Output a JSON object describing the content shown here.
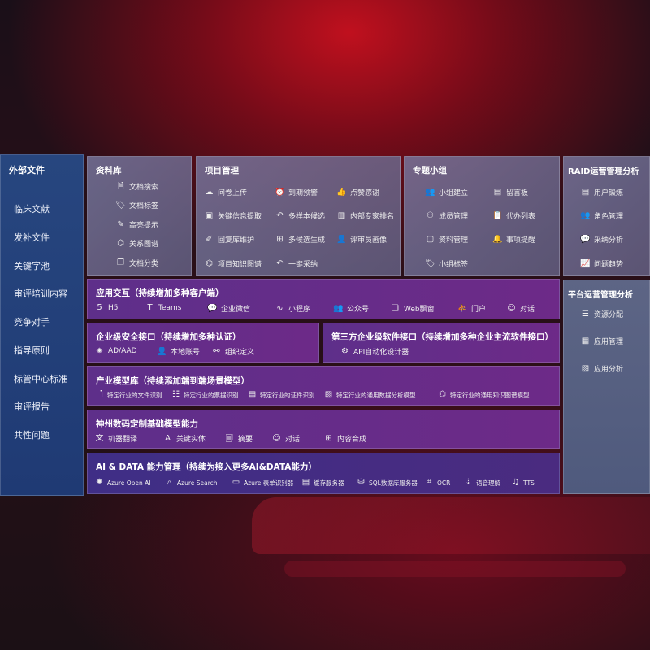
{
  "sidebar": {
    "title": "外部文件",
    "items": [
      "临床文献",
      "发补文件",
      "关键字池",
      "审评培训内容",
      "竞争对手",
      "指导原则",
      "标管中心标准",
      "审评报告",
      "共性问题"
    ]
  },
  "library": {
    "title": "资料库",
    "items": [
      {
        "icon": "doc-search-icon",
        "label": "文档搜索"
      },
      {
        "icon": "tag-icon",
        "label": "文档标签"
      },
      {
        "icon": "pen-icon",
        "label": "高亮提示"
      },
      {
        "icon": "graph-icon",
        "label": "关系图谱"
      },
      {
        "icon": "doc-category-icon",
        "label": "文档分类"
      }
    ]
  },
  "project": {
    "title": "项目管理",
    "items": [
      {
        "icon": "cloud-upload-icon",
        "label": "问卷上传"
      },
      {
        "icon": "alarm-icon",
        "label": "到期预警"
      },
      {
        "icon": "thumbs-up-icon",
        "label": "点赞感谢"
      },
      {
        "icon": "extract-icon",
        "label": "关键信息提取"
      },
      {
        "icon": "reply-icon",
        "label": "多样本候选"
      },
      {
        "icon": "ranking-icon",
        "label": "内部专家排名"
      },
      {
        "icon": "edit-icon",
        "label": "回复库维护"
      },
      {
        "icon": "puzzle-icon",
        "label": "多候选生成"
      },
      {
        "icon": "user-icon",
        "label": "评审员画像"
      },
      {
        "icon": "graph-icon",
        "label": "项目知识图谱"
      },
      {
        "icon": "reply-icon",
        "label": "一键采纳"
      }
    ]
  },
  "group": {
    "title": "专题小组",
    "items": [
      {
        "icon": "users-icon",
        "label": "小组建立"
      },
      {
        "icon": "bbs-icon",
        "label": "留言板"
      },
      {
        "icon": "user-add-icon",
        "label": "成员管理"
      },
      {
        "icon": "clipboard-icon",
        "label": "代办列表"
      },
      {
        "icon": "folder-icon",
        "label": "资料管理"
      },
      {
        "icon": "bell-icon",
        "label": "事项提醒"
      },
      {
        "icon": "tag-icon",
        "label": "小组标签"
      }
    ]
  },
  "raid": {
    "title": "RAID运营管理分析",
    "items": [
      {
        "icon": "id-card-icon",
        "label": "用户锻炼"
      },
      {
        "icon": "users-icon",
        "label": "角色管理"
      },
      {
        "icon": "qa-icon",
        "label": "采纳分析"
      },
      {
        "icon": "trend-icon",
        "label": "问题趋势"
      }
    ]
  },
  "platform": {
    "title": "平台运营管理分析",
    "items": [
      {
        "icon": "list-icon",
        "label": "资源分配"
      },
      {
        "icon": "apps-icon",
        "label": "应用管理"
      },
      {
        "icon": "analytics-icon",
        "label": "应用分析"
      }
    ]
  },
  "app": {
    "title": "应用交互（持续增加多种客户端）",
    "items": [
      {
        "icon": "html5-icon",
        "label": "H5"
      },
      {
        "icon": "teams-icon",
        "label": "Teams"
      },
      {
        "icon": "wechat-icon",
        "label": "企业微信"
      },
      {
        "icon": "miniprogram-icon",
        "label": "小程序"
      },
      {
        "icon": "users-icon",
        "label": "公众号"
      },
      {
        "icon": "window-icon",
        "label": "Web飘窗"
      },
      {
        "icon": "portal-icon",
        "label": "门户"
      },
      {
        "icon": "chat-icon",
        "label": "对话"
      }
    ]
  },
  "security": {
    "title": "企业级安全接口（持续增加多种认证）",
    "items": [
      {
        "icon": "ad-icon",
        "label": "AD/AAD"
      },
      {
        "icon": "user-icon",
        "label": "本地账号"
      },
      {
        "icon": "org-icon",
        "label": "组织定义"
      }
    ]
  },
  "thirdparty": {
    "title": "第三方企业级软件接口（持续增加多种企业主流软件接口）",
    "items": [
      {
        "icon": "gear-icon",
        "label": "API自动化设计器"
      }
    ]
  },
  "industry": {
    "title": "产业模型库（持续添加端到端场景模型）",
    "items": [
      {
        "icon": "file-icon",
        "label": "特定行业的文件识别"
      },
      {
        "icon": "receipt-icon",
        "label": "特定行业的票据识别"
      },
      {
        "icon": "id-card-icon",
        "label": "特定行业的证件识别"
      },
      {
        "icon": "chart-icon",
        "label": "特定行业的通用数据分析模型"
      },
      {
        "icon": "graph-icon",
        "label": "特定行业的通用知识图谱模型"
      }
    ]
  },
  "base": {
    "title": "神州数码定制基础模型能力",
    "items": [
      {
        "icon": "translate-icon",
        "label": "机器翻译"
      },
      {
        "icon": "entity-icon",
        "label": "关键实体"
      },
      {
        "icon": "summary-icon",
        "label": "摘要"
      },
      {
        "icon": "chat-icon",
        "label": "对话"
      },
      {
        "icon": "compose-icon",
        "label": "内容合成"
      }
    ]
  },
  "ai": {
    "title": "AI & DATA 能力管理（持续为接入更多AI&DATA能力）",
    "items": [
      {
        "icon": "openai-icon",
        "label": "Azure Open AI"
      },
      {
        "icon": "search-icon",
        "label": "Azure Search"
      },
      {
        "icon": "form-icon",
        "label": "Azure 表单识别器"
      },
      {
        "icon": "cache-icon",
        "label": "缓存服务器"
      },
      {
        "icon": "database-icon",
        "label": "SQL数据库服务器"
      },
      {
        "icon": "ocr-icon",
        "label": "OCR"
      },
      {
        "icon": "speech-icon",
        "label": "语音理解"
      },
      {
        "icon": "tts-icon",
        "label": "TTS"
      }
    ]
  }
}
